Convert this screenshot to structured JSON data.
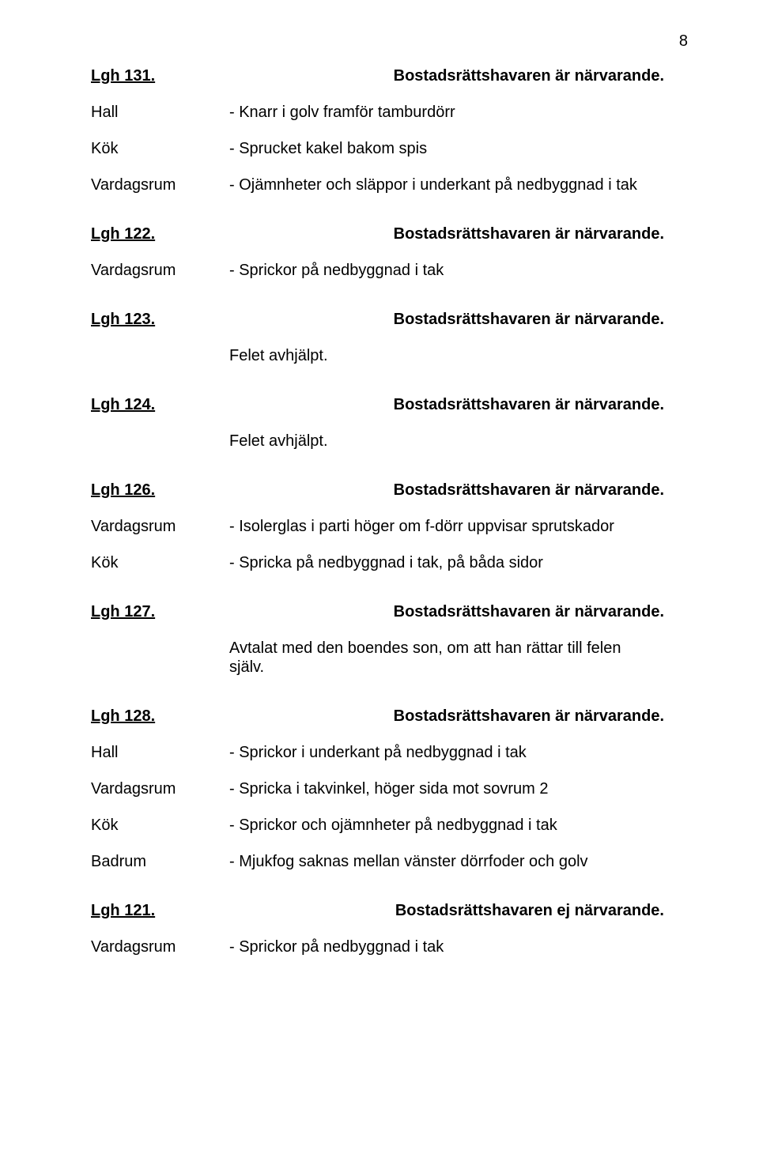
{
  "page_number": "8",
  "status_present": "Bostadsrättshavaren är närvarande.",
  "status_absent": "Bostadsrättshavaren ej närvarande.",
  "felet": "Felet avhjälpt.",
  "sections": {
    "s131": {
      "lgh": "Lgh 131.",
      "rows": [
        {
          "label": "Hall",
          "text": "- Knarr i golv framför tamburdörr"
        },
        {
          "label": "Kök",
          "text": "- Sprucket kakel bakom spis"
        },
        {
          "label": "Vardagsrum",
          "text": "- Ojämnheter och släppor i underkant på nedbyggnad i tak"
        }
      ]
    },
    "s122": {
      "lgh": "Lgh 122.",
      "rows": [
        {
          "label": "Vardagsrum",
          "text": "- Sprickor på nedbyggnad i tak"
        }
      ]
    },
    "s123": {
      "lgh": "Lgh 123."
    },
    "s124": {
      "lgh": "Lgh 124."
    },
    "s126": {
      "lgh": "Lgh 126.",
      "rows": [
        {
          "label": "Vardagsrum",
          "text": "- Isolerglas i parti höger om f-dörr uppvisar sprutskador"
        },
        {
          "label": "Kök",
          "text": "- Spricka på nedbyggnad i tak, på båda sidor"
        }
      ]
    },
    "s127": {
      "lgh": "Lgh 127.",
      "note": "Avtalat med den boendes son, om att han rättar till felen själv."
    },
    "s128": {
      "lgh": "Lgh 128.",
      "rows": [
        {
          "label": "Hall",
          "text": "- Sprickor i underkant på nedbyggnad i tak"
        },
        {
          "label": "Vardagsrum",
          "text": "- Spricka i takvinkel, höger sida mot sovrum 2"
        },
        {
          "label": "Kök",
          "text": "- Sprickor och ojämnheter på nedbyggnad i tak"
        },
        {
          "label": "Badrum",
          "text": "- Mjukfog saknas mellan vänster dörrfoder och golv"
        }
      ]
    },
    "s121": {
      "lgh": "Lgh 121.",
      "rows": [
        {
          "label": "Vardagsrum",
          "text": "- Sprickor på nedbyggnad i tak"
        }
      ]
    }
  }
}
